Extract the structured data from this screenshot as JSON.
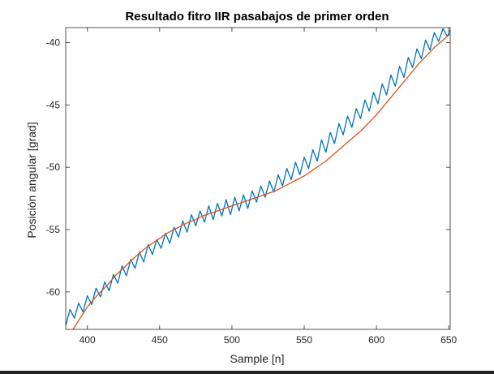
{
  "chart_data": {
    "type": "line",
    "title": "Resultado fitro IIR pasabajos de primer orden",
    "xlabel": "Sample [n]",
    "ylabel": "Posición angular [grad]",
    "xlim": [
      385,
      651
    ],
    "ylim": [
      -63,
      -38.8
    ],
    "xticks": [
      400,
      450,
      500,
      550,
      600,
      650
    ],
    "xtick_labels": [
      "400",
      "450",
      "500",
      "550",
      "600",
      "650"
    ],
    "yticks": [
      -60,
      -55,
      -50,
      -45,
      -40
    ],
    "ytick_labels": [
      "-60",
      "-55",
      "-50",
      "-45",
      "-40"
    ],
    "grid": false,
    "legend": "none",
    "series": [
      {
        "color": "#0072BD",
        "x": [
          385,
          388,
          391,
          394,
          397,
          400,
          403,
          406,
          409,
          412,
          415,
          418,
          421,
          424,
          427,
          430,
          433,
          436,
          439,
          442,
          445,
          448,
          451,
          454,
          457,
          460,
          463,
          466,
          469,
          472,
          475,
          478,
          481,
          484,
          487,
          490,
          493,
          496,
          499,
          502,
          505,
          508,
          511,
          514,
          517,
          520,
          523,
          526,
          529,
          532,
          535,
          538,
          541,
          544,
          547,
          550,
          553,
          556,
          559,
          562,
          565,
          568,
          571,
          574,
          577,
          580,
          583,
          586,
          589,
          592,
          595,
          598,
          601,
          604,
          607,
          610,
          613,
          616,
          619,
          622,
          625,
          628,
          631,
          634,
          637,
          640,
          643,
          646,
          649,
          651
        ],
        "y": [
          -62.7,
          -61.4,
          -62.1,
          -60.9,
          -61.6,
          -60.3,
          -61.0,
          -59.7,
          -60.4,
          -59.2,
          -59.9,
          -58.6,
          -59.3,
          -57.9,
          -58.7,
          -57.4,
          -58.1,
          -56.8,
          -57.6,
          -56.2,
          -57.0,
          -55.8,
          -56.5,
          -55.3,
          -56.1,
          -54.8,
          -55.6,
          -54.3,
          -55.2,
          -53.8,
          -54.7,
          -53.5,
          -54.4,
          -53.1,
          -54.2,
          -52.9,
          -53.9,
          -52.6,
          -53.8,
          -52.4,
          -53.5,
          -52.2,
          -53.3,
          -51.9,
          -52.8,
          -51.5,
          -52.4,
          -51.1,
          -52.0,
          -50.6,
          -51.5,
          -50.1,
          -51.0,
          -49.6,
          -50.6,
          -49.2,
          -50.1,
          -48.6,
          -49.5,
          -47.8,
          -48.8,
          -47.2,
          -48.1,
          -46.5,
          -47.4,
          -45.9,
          -46.8,
          -45.3,
          -46.1,
          -44.6,
          -45.5,
          -44.0,
          -44.9,
          -43.3,
          -44.2,
          -42.6,
          -43.5,
          -41.9,
          -42.8,
          -41.2,
          -42.0,
          -40.5,
          -41.3,
          -39.8,
          -40.6,
          -39.2,
          -39.9,
          -38.9,
          -39.5,
          -39.0
        ]
      },
      {
        "color": "#D95319",
        "x": [
          385,
          390,
          395,
          400,
          405,
          410,
          415,
          420,
          425,
          430,
          435,
          440,
          445,
          450,
          455,
          460,
          465,
          470,
          475,
          480,
          485,
          490,
          495,
          500,
          505,
          510,
          515,
          520,
          525,
          530,
          535,
          540,
          545,
          550,
          555,
          560,
          565,
          570,
          575,
          580,
          585,
          590,
          595,
          600,
          605,
          610,
          615,
          620,
          625,
          630,
          635,
          640,
          645,
          651
        ],
        "y": [
          -63.5,
          -63.0,
          -62.1,
          -61.2,
          -60.5,
          -59.9,
          -59.3,
          -58.6,
          -58.1,
          -57.5,
          -57.0,
          -56.5,
          -56.1,
          -55.7,
          -55.3,
          -55.0,
          -54.7,
          -54.4,
          -54.2,
          -53.9,
          -53.7,
          -53.5,
          -53.3,
          -53.1,
          -52.9,
          -52.7,
          -52.5,
          -52.3,
          -52.1,
          -51.9,
          -51.6,
          -51.3,
          -51.0,
          -50.7,
          -50.3,
          -49.9,
          -49.5,
          -49.0,
          -48.5,
          -48.0,
          -47.5,
          -47.0,
          -46.4,
          -45.8,
          -45.1,
          -44.4,
          -43.7,
          -43.0,
          -42.3,
          -41.6,
          -41.0,
          -40.4,
          -39.9,
          -39.3
        ]
      }
    ]
  }
}
